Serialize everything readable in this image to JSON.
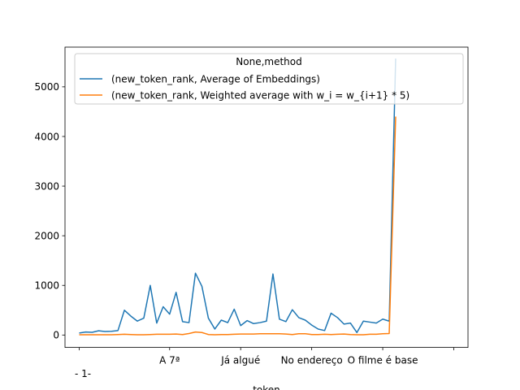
{
  "chart_data": {
    "type": "line",
    "title": "",
    "xlabel": "token",
    "ylabel": "",
    "ylim": [
      -250,
      5800
    ],
    "xlim": [
      -2.2,
      60.2
    ],
    "yticks": [
      0,
      1000,
      2000,
      3000,
      4000,
      5000
    ],
    "ytick_labels": [
      "0",
      "1000",
      "2000",
      "3000",
      "4000",
      "5000"
    ],
    "xtick_positions": [
      0,
      14,
      25,
      36,
      47,
      58
    ],
    "xtick_labels": [
      "",
      "A 7ª",
      "Já algué",
      "No endereço",
      "O filme é base",
      ""
    ],
    "x_offset_label": "- 1-",
    "grid": false,
    "legend": {
      "title": "None,method",
      "placement": "upper-left"
    },
    "series": [
      {
        "name": "(new_token_rank, Average of Embeddings)",
        "color": "#1f77b4",
        "values": [
          40,
          60,
          55,
          85,
          70,
          75,
          90,
          500,
          380,
          280,
          340,
          1000,
          240,
          570,
          420,
          860,
          270,
          250,
          1245,
          980,
          340,
          120,
          300,
          250,
          520,
          190,
          290,
          230,
          250,
          280,
          1230,
          320,
          270,
          510,
          350,
          300,
          200,
          120,
          90,
          440,
          350,
          220,
          240,
          50,
          280,
          260,
          240,
          320,
          280,
          5570
        ]
      },
      {
        "name": "(new_token_rank, Weighted average with w_i = w_{i+1} * 5)",
        "color": "#ff7f0e",
        "values": [
          5,
          5,
          5,
          5,
          5,
          5,
          10,
          15,
          10,
          5,
          5,
          10,
          15,
          15,
          15,
          20,
          10,
          30,
          60,
          50,
          10,
          5,
          10,
          10,
          15,
          20,
          20,
          20,
          25,
          25,
          25,
          25,
          20,
          10,
          25,
          25,
          10,
          10,
          15,
          10,
          15,
          20,
          10,
          5,
          5,
          15,
          15,
          25,
          30,
          4400
        ]
      }
    ]
  }
}
